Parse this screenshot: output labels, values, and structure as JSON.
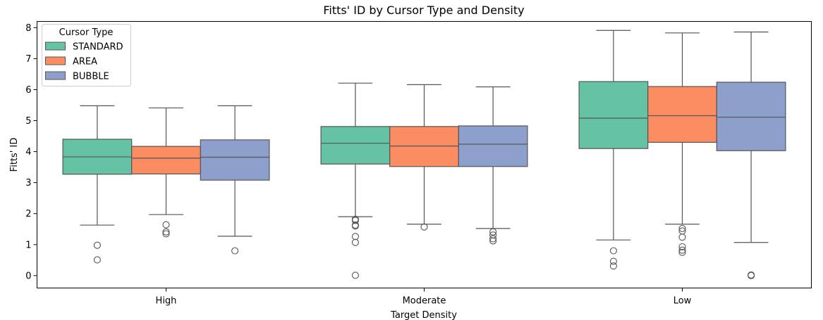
{
  "chart_data": {
    "type": "box",
    "title": "Fitts' ID by Cursor Type and Density",
    "xlabel": "Target Density",
    "ylabel": "Fitts' ID",
    "categories": [
      "High",
      "Moderate",
      "Low"
    ],
    "ylim": [
      -0.4,
      8.2
    ],
    "yticks": [
      0,
      1,
      2,
      3,
      4,
      5,
      6,
      7,
      8
    ],
    "grid": false,
    "legend": {
      "title": "Cursor Type",
      "position": "top-left"
    },
    "series": [
      {
        "name": "STANDARD",
        "color": "#66c2a5",
        "boxes": [
          {
            "whislo": 1.63,
            "q1": 3.27,
            "med": 3.83,
            "q3": 4.4,
            "whishi": 5.48,
            "fliers": [
              0.98,
              0.51
            ]
          },
          {
            "whislo": 1.9,
            "q1": 3.6,
            "med": 4.27,
            "q3": 4.81,
            "whishi": 6.21,
            "fliers": [
              1.82,
              1.78,
              1.63,
              1.6,
              1.26,
              1.07,
              0.01
            ]
          },
          {
            "whislo": 1.15,
            "q1": 4.1,
            "med": 5.08,
            "q3": 6.26,
            "whishi": 7.91,
            "fliers": [
              0.8,
              0.46,
              0.31
            ]
          }
        ]
      },
      {
        "name": "AREA",
        "color": "#fc8d62",
        "boxes": [
          {
            "whislo": 1.97,
            "q1": 3.28,
            "med": 3.79,
            "q3": 4.17,
            "whishi": 5.41,
            "fliers": [
              1.64,
              1.41,
              1.35
            ]
          },
          {
            "whislo": 1.66,
            "q1": 3.52,
            "med": 4.18,
            "q3": 4.81,
            "whishi": 6.16,
            "fliers": [
              1.57
            ]
          },
          {
            "whislo": 1.66,
            "q1": 4.3,
            "med": 5.16,
            "q3": 6.1,
            "whishi": 7.83,
            "fliers": [
              1.52,
              1.44,
              1.24,
              0.93,
              0.82,
              0.75
            ]
          }
        ]
      },
      {
        "name": "BUBBLE",
        "color": "#8da0cb",
        "boxes": [
          {
            "whislo": 1.27,
            "q1": 3.08,
            "med": 3.82,
            "q3": 4.38,
            "whishi": 5.48,
            "fliers": [
              0.8
            ]
          },
          {
            "whislo": 1.52,
            "q1": 3.52,
            "med": 4.24,
            "q3": 4.83,
            "whishi": 6.09,
            "fliers": [
              1.41,
              1.31,
              1.19,
              1.12
            ]
          },
          {
            "whislo": 1.07,
            "q1": 4.03,
            "med": 5.11,
            "q3": 6.24,
            "whishi": 7.86,
            "fliers": [
              0.02,
              0.0
            ]
          }
        ]
      }
    ]
  }
}
